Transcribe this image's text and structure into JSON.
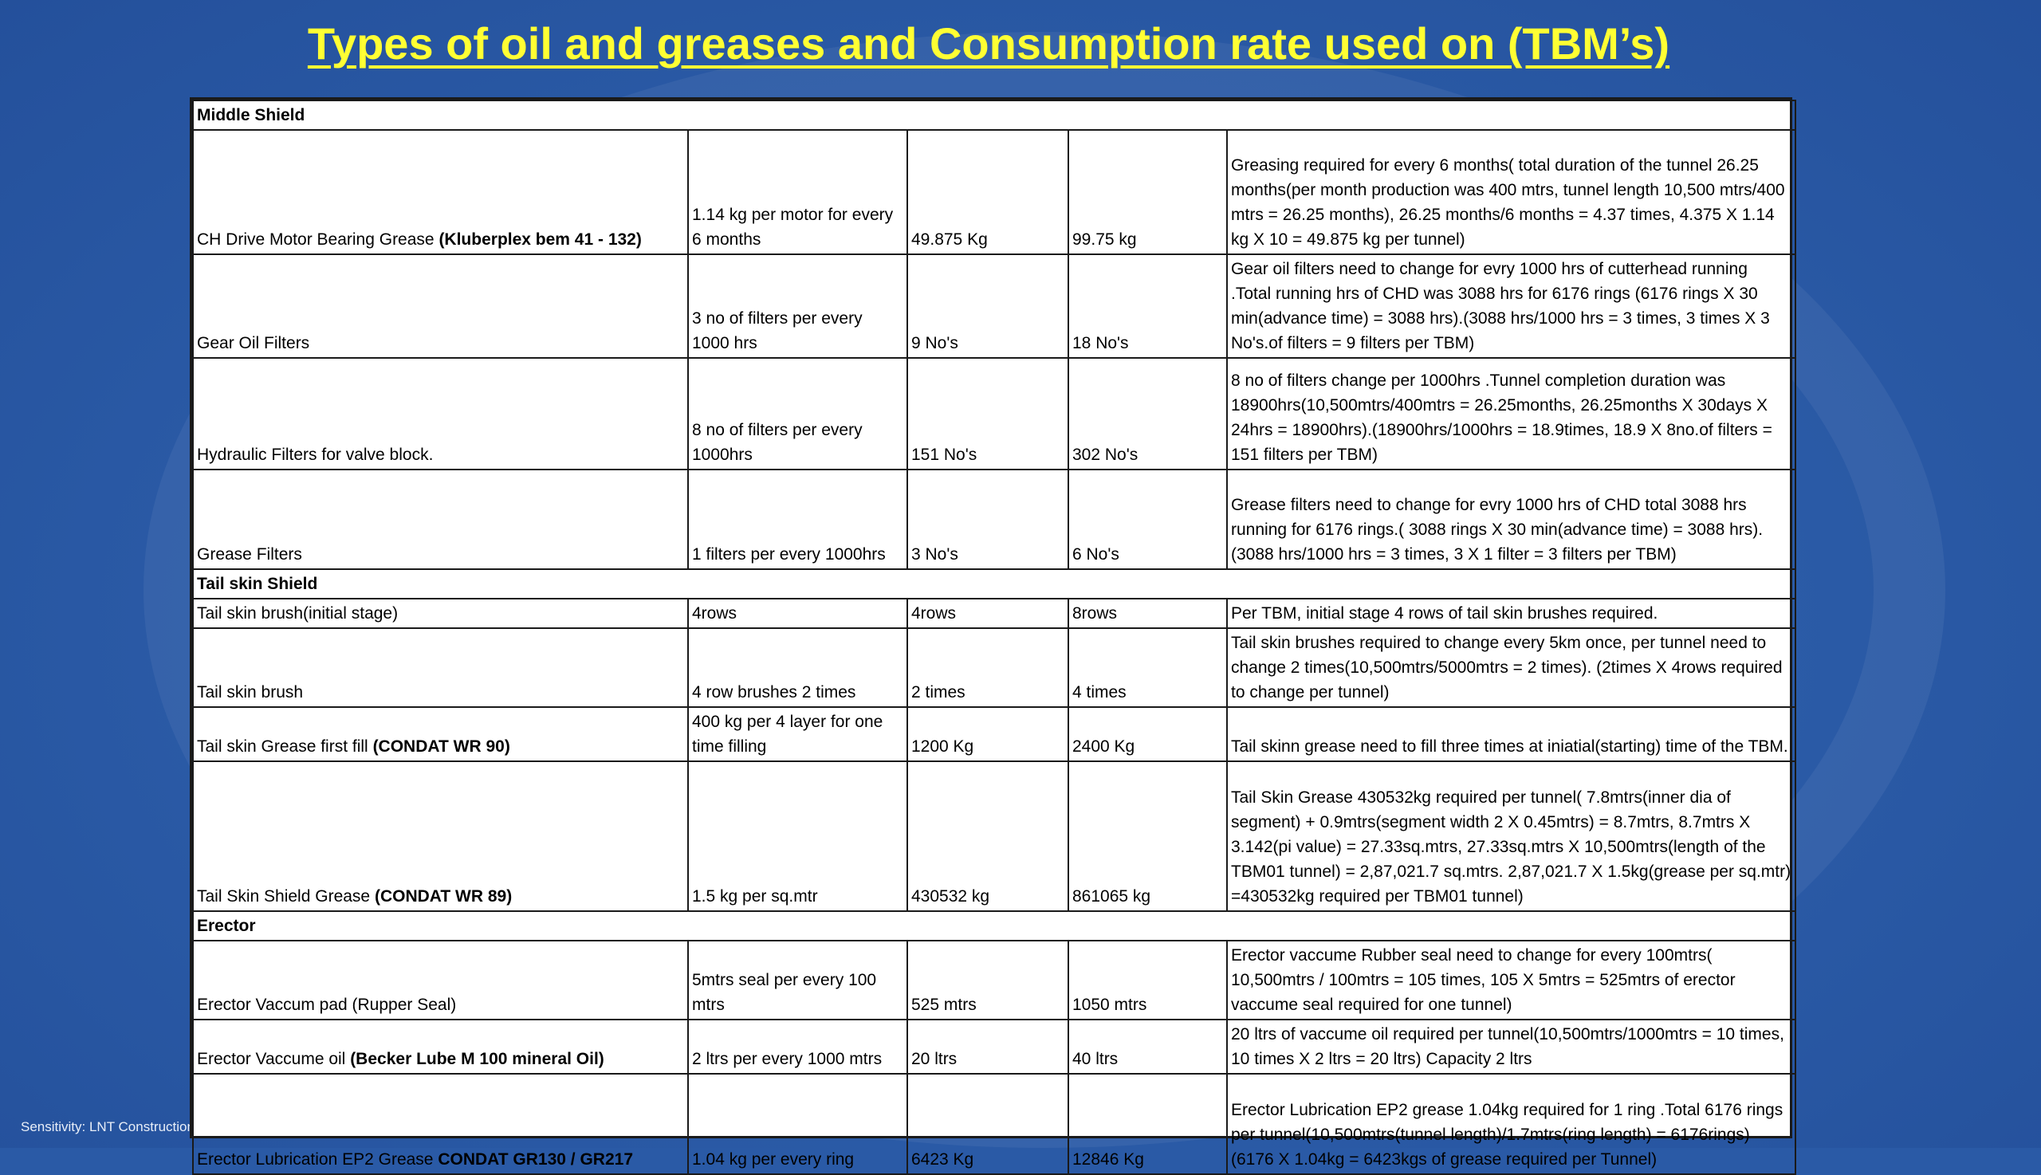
{
  "title": "Types of oil and greases and Consumption rate used on (TBM’s)",
  "footer": {
    "sensitivity": "Sensitivity: LNT Construction Internal Use"
  },
  "sections": [
    {
      "label": "Middle Shield",
      "rows": [
        {
          "item": "CH Drive Motor Bearing Grease ",
          "item_bold": "(Kluberplex bem 41 - 132)",
          "rate": "1.14 kg per motor for every 6 months",
          "qty1": "49.875 Kg",
          "qty2": "99.75 kg",
          "remark": "Greasing required for every 6 months( total duration of the tunnel 26.25 months(per month production was 400 mtrs, tunnel length 10,500 mtrs/400 mtrs = 26.25 months), 26.25 months/6 months = 4.37 times, 4.375 X 1.14 kg X 10 = 49.875 kg per tunnel)"
        },
        {
          "item": "Gear Oil Filters",
          "item_bold": "",
          "rate": "3 no of filters  per every 1000 hrs",
          "qty1": "9 No's",
          "qty2": "18 No's",
          "remark": "Gear oil filters need to change for evry 1000 hrs of cutterhead running .Total running hrs of CHD was 3088 hrs for 6176 rings        (6176 rings X 30 min(advance time) = 3088 hrs).(3088 hrs/1000 hrs = 3 times, 3 times X 3 No's.of filters = 9 filters per TBM)"
        },
        {
          "item": "Hydraulic Filters for valve block.",
          "item_bold": "",
          "rate": "8 no of filters per every 1000hrs",
          "qty1": "151 No's",
          "qty2": "302 No's",
          "remark": "8 no of filters change per 1000hrs .Tunnel completion duration was 18900hrs(10,500mtrs/400mtrs = 26.25months, 26.25months X 30days X 24hrs = 18900hrs).(18900hrs/1000hrs = 18.9times, 18.9 X 8no.of filters = 151 filters per TBM)"
        },
        {
          "item": "Grease Filters",
          "item_bold": "",
          "rate": "1 filters per every 1000hrs",
          "qty1": "3 No's",
          "qty2": "6 No's",
          "remark": "Grease filters need to change for evry 1000 hrs of CHD total 3088 hrs running  for 6176 rings.( 3088 rings X 30 min(advance time) = 3088 hrs).(3088 hrs/1000 hrs = 3 times, 3 X 1 filter = 3 filters per TBM)"
        }
      ]
    },
    {
      "label": "Tail skin Shield",
      "rows": [
        {
          "item": "Tail skin brush(initial stage)",
          "item_bold": "",
          "rate": "4rows",
          "qty1": "4rows",
          "qty2": "8rows",
          "remark": "Per TBM, initial stage 4 rows of tail skin brushes required."
        },
        {
          "item": "Tail skin brush",
          "item_bold": "",
          "rate": "4 row brushes 2 times",
          "qty1": "2 times",
          "qty2": "4 times",
          "remark": "Tail skin brushes required to change every 5km once, per tunnel need to change 2 times(10,500mtrs/5000mtrs = 2 times). (2times X 4rows required to change per tunnel)"
        },
        {
          "item": "Tail skin Grease first fill ",
          "item_bold": "(CONDAT WR 90)",
          "rate": "400 kg per 4 layer for one time filling",
          "qty1": "1200 Kg",
          "qty2": "2400 Kg",
          "remark": "Tail skinn grease need to fill three times at iniatial(starting) time of the TBM."
        },
        {
          "item": "Tail Skin Shield Grease ",
          "item_bold": "(CONDAT WR 89)",
          "rate": "1.5 kg per sq.mtr",
          "qty1": "430532 kg",
          "qty2": "861065 kg",
          "remark": "Tail Skin Grease 430532kg required per tunnel( 7.8mtrs(inner dia of segment) + 0.9mtrs(segment width 2 X 0.45mtrs) = 8.7mtrs, 8.7mtrs X 3.142(pi value) = 27.33sq.mtrs, 27.33sq.mtrs X 10,500mtrs(length of the TBM01 tunnel) = 2,87,021.7 sq.mtrs. 2,87,021.7 X 1.5kg(grease per sq.mtr) =430532kg required per TBM01 tunnel)"
        }
      ]
    },
    {
      "label": "Erector",
      "rows": [
        {
          "item": "Erector Vaccum pad (Rupper Seal)",
          "item_bold": "",
          "rate": "5mtrs seal per every 100 mtrs",
          "qty1": "525 mtrs",
          "qty2": "1050 mtrs",
          "remark": "Erector vaccume Rubber seal need to change for every 100mtrs( 10,500mtrs / 100mtrs = 105 times, 105 X 5mtrs = 525mtrs of erector vaccume seal required for one tunnel)"
        },
        {
          "item": "Erector Vaccume oil ",
          "item_bold": "(Becker Lube M 100 mineral Oil)",
          "rate": "2 ltrs per every 1000 mtrs",
          "qty1": "20 ltrs",
          "qty2": "40 ltrs",
          "remark": "20 ltrs of vaccume oil required per tunnel(10,500mtrs/1000mtrs = 10 times, 10 times X 2 ltrs = 20 ltrs) Capacity 2 ltrs"
        },
        {
          "item": "Erector Lubrication EP2 Grease ",
          "item_bold": "CONDAT GR130 / GR217",
          "rate": "1.04 kg per every ring",
          "qty1": "6423 Kg",
          "qty2": "12846 Kg",
          "remark": "Erector Lubrication EP2 grease 1.04kg required for 1 ring .Total 6176 rings per tunnel(10,500mtrs(tunnel length)/1.7mtrs(ring length) = 6176rings) (6176 X 1.04kg = 6423kgs of grease required per Tunnel)"
        }
      ]
    }
  ]
}
